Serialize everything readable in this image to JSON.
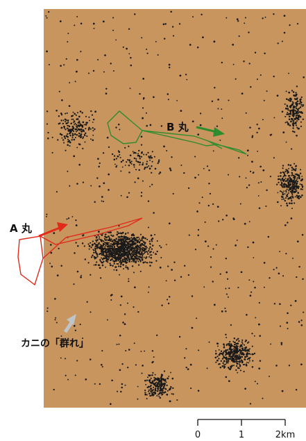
{
  "labels": {
    "boat_a": "A 丸",
    "boat_b": "B 丸",
    "crab_swarm": "カニの「群れ」"
  },
  "scale_bar": {
    "ticks": [
      "0",
      "1",
      "2km"
    ]
  },
  "colors": {
    "map_background": "#c8955f",
    "dots": "#1a1a1a",
    "boat_a_track": "#e02a1a",
    "boat_b_track": "#2e8b2e",
    "swarm_arrow": "#bfc4c8"
  }
}
